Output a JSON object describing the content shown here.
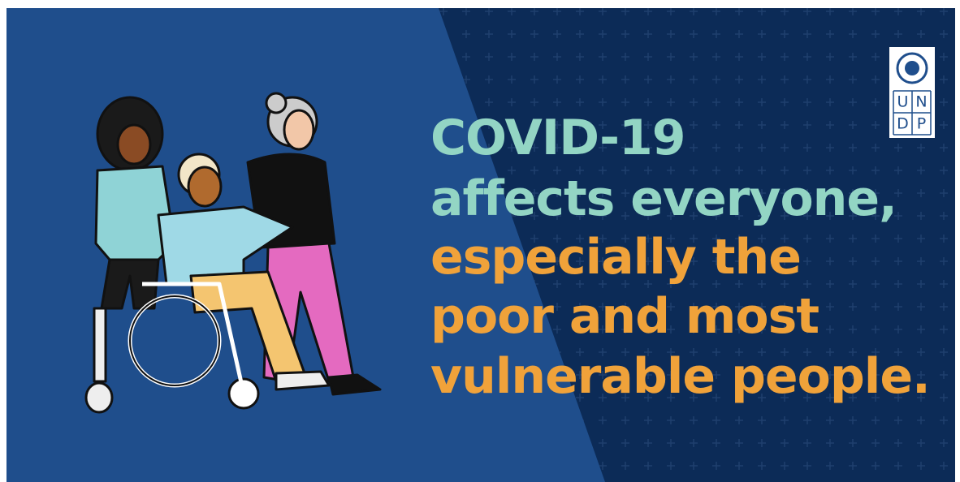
{
  "headline": {
    "lead": [
      "COVID-19",
      "affects everyone,"
    ],
    "emphasis": [
      "especially the",
      "poor and most",
      "vulnerable people."
    ]
  },
  "logo": {
    "letters": [
      "U",
      "N",
      "D",
      "P"
    ]
  }
}
